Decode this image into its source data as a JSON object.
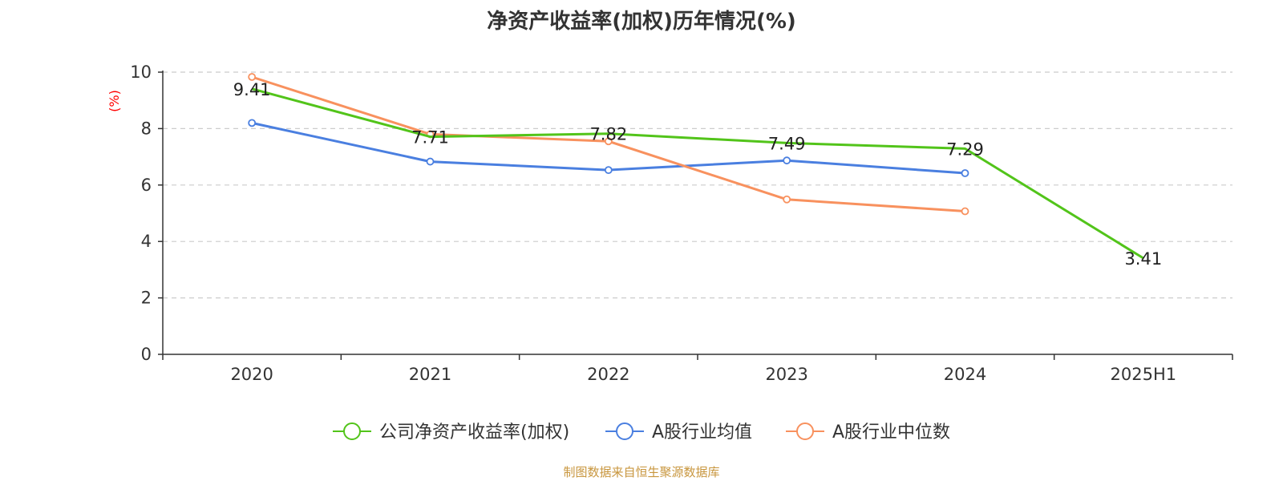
{
  "title": "净资产收益率(加权)历年情况(%)",
  "source": "制图数据来自恒生聚源数据库",
  "colors": {
    "company": "#52c41a",
    "industry_avg": "#4a7fe0",
    "industry_median": "#f8915e",
    "unit_label": "#ff0000",
    "axis": "#333333",
    "grid": "#cccccc"
  },
  "chart_data": {
    "type": "line",
    "title": "净资产收益率(加权)历年情况(%)",
    "ylabel": "(%)",
    "xlabel": "",
    "categories": [
      "2020",
      "2021",
      "2022",
      "2023",
      "2024",
      "2025H1"
    ],
    "ylim": [
      0,
      10
    ],
    "yticks": [
      0,
      2,
      4,
      6,
      8,
      10
    ],
    "grid": true,
    "legend_position": "bottom",
    "series": [
      {
        "name": "公司净资产收益率(加权)",
        "color": "#52c41a",
        "values": [
          9.41,
          7.71,
          7.82,
          7.49,
          7.29,
          3.41
        ],
        "show_labels": true,
        "labels": [
          "9.41",
          "7.71",
          "7.82",
          "7.49",
          "7.29",
          "3.41"
        ]
      },
      {
        "name": "A股行业均值",
        "color": "#4a7fe0",
        "values": [
          8.2,
          6.83,
          6.53,
          6.87,
          6.42,
          null
        ],
        "show_labels": false
      },
      {
        "name": "A股行业中位数",
        "color": "#f8915e",
        "values": [
          9.83,
          7.8,
          7.55,
          5.49,
          5.07,
          null
        ],
        "show_labels": false
      }
    ]
  }
}
